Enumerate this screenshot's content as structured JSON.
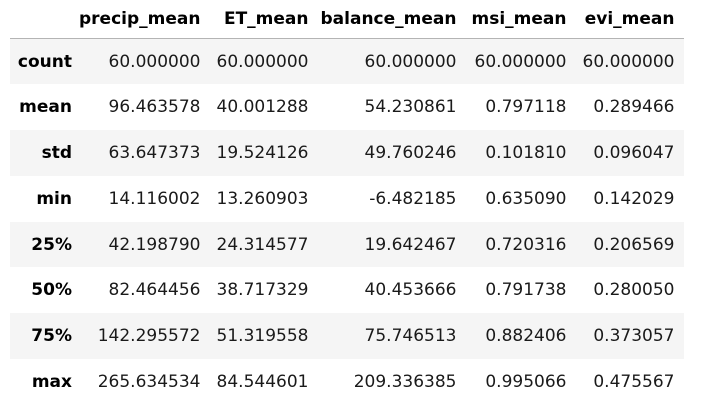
{
  "table": {
    "columns": [
      "precip_mean",
      "ET_mean",
      "balance_mean",
      "msi_mean",
      "evi_mean"
    ],
    "rows": [
      {
        "index": "count",
        "values": [
          "60.000000",
          "60.000000",
          "60.000000",
          "60.000000",
          "60.000000"
        ]
      },
      {
        "index": "mean",
        "values": [
          "96.463578",
          "40.001288",
          "54.230861",
          "0.797118",
          "0.289466"
        ]
      },
      {
        "index": "std",
        "values": [
          "63.647373",
          "19.524126",
          "49.760246",
          "0.101810",
          "0.096047"
        ]
      },
      {
        "index": "min",
        "values": [
          "14.116002",
          "13.260903",
          "-6.482185",
          "0.635090",
          "0.142029"
        ]
      },
      {
        "index": "25%",
        "values": [
          "42.198790",
          "24.314577",
          "19.642467",
          "0.720316",
          "0.206569"
        ]
      },
      {
        "index": "50%",
        "values": [
          "82.464456",
          "38.717329",
          "40.453666",
          "0.791738",
          "0.280050"
        ]
      },
      {
        "index": "75%",
        "values": [
          "142.295572",
          "51.319558",
          "75.746513",
          "0.882406",
          "0.373057"
        ]
      },
      {
        "index": "max",
        "values": [
          "265.634534",
          "84.544601",
          "209.336385",
          "0.995066",
          "0.475567"
        ]
      }
    ]
  },
  "colors": {
    "row_stripe": "#f5f5f5",
    "header_rule": "#b4b4b4"
  }
}
